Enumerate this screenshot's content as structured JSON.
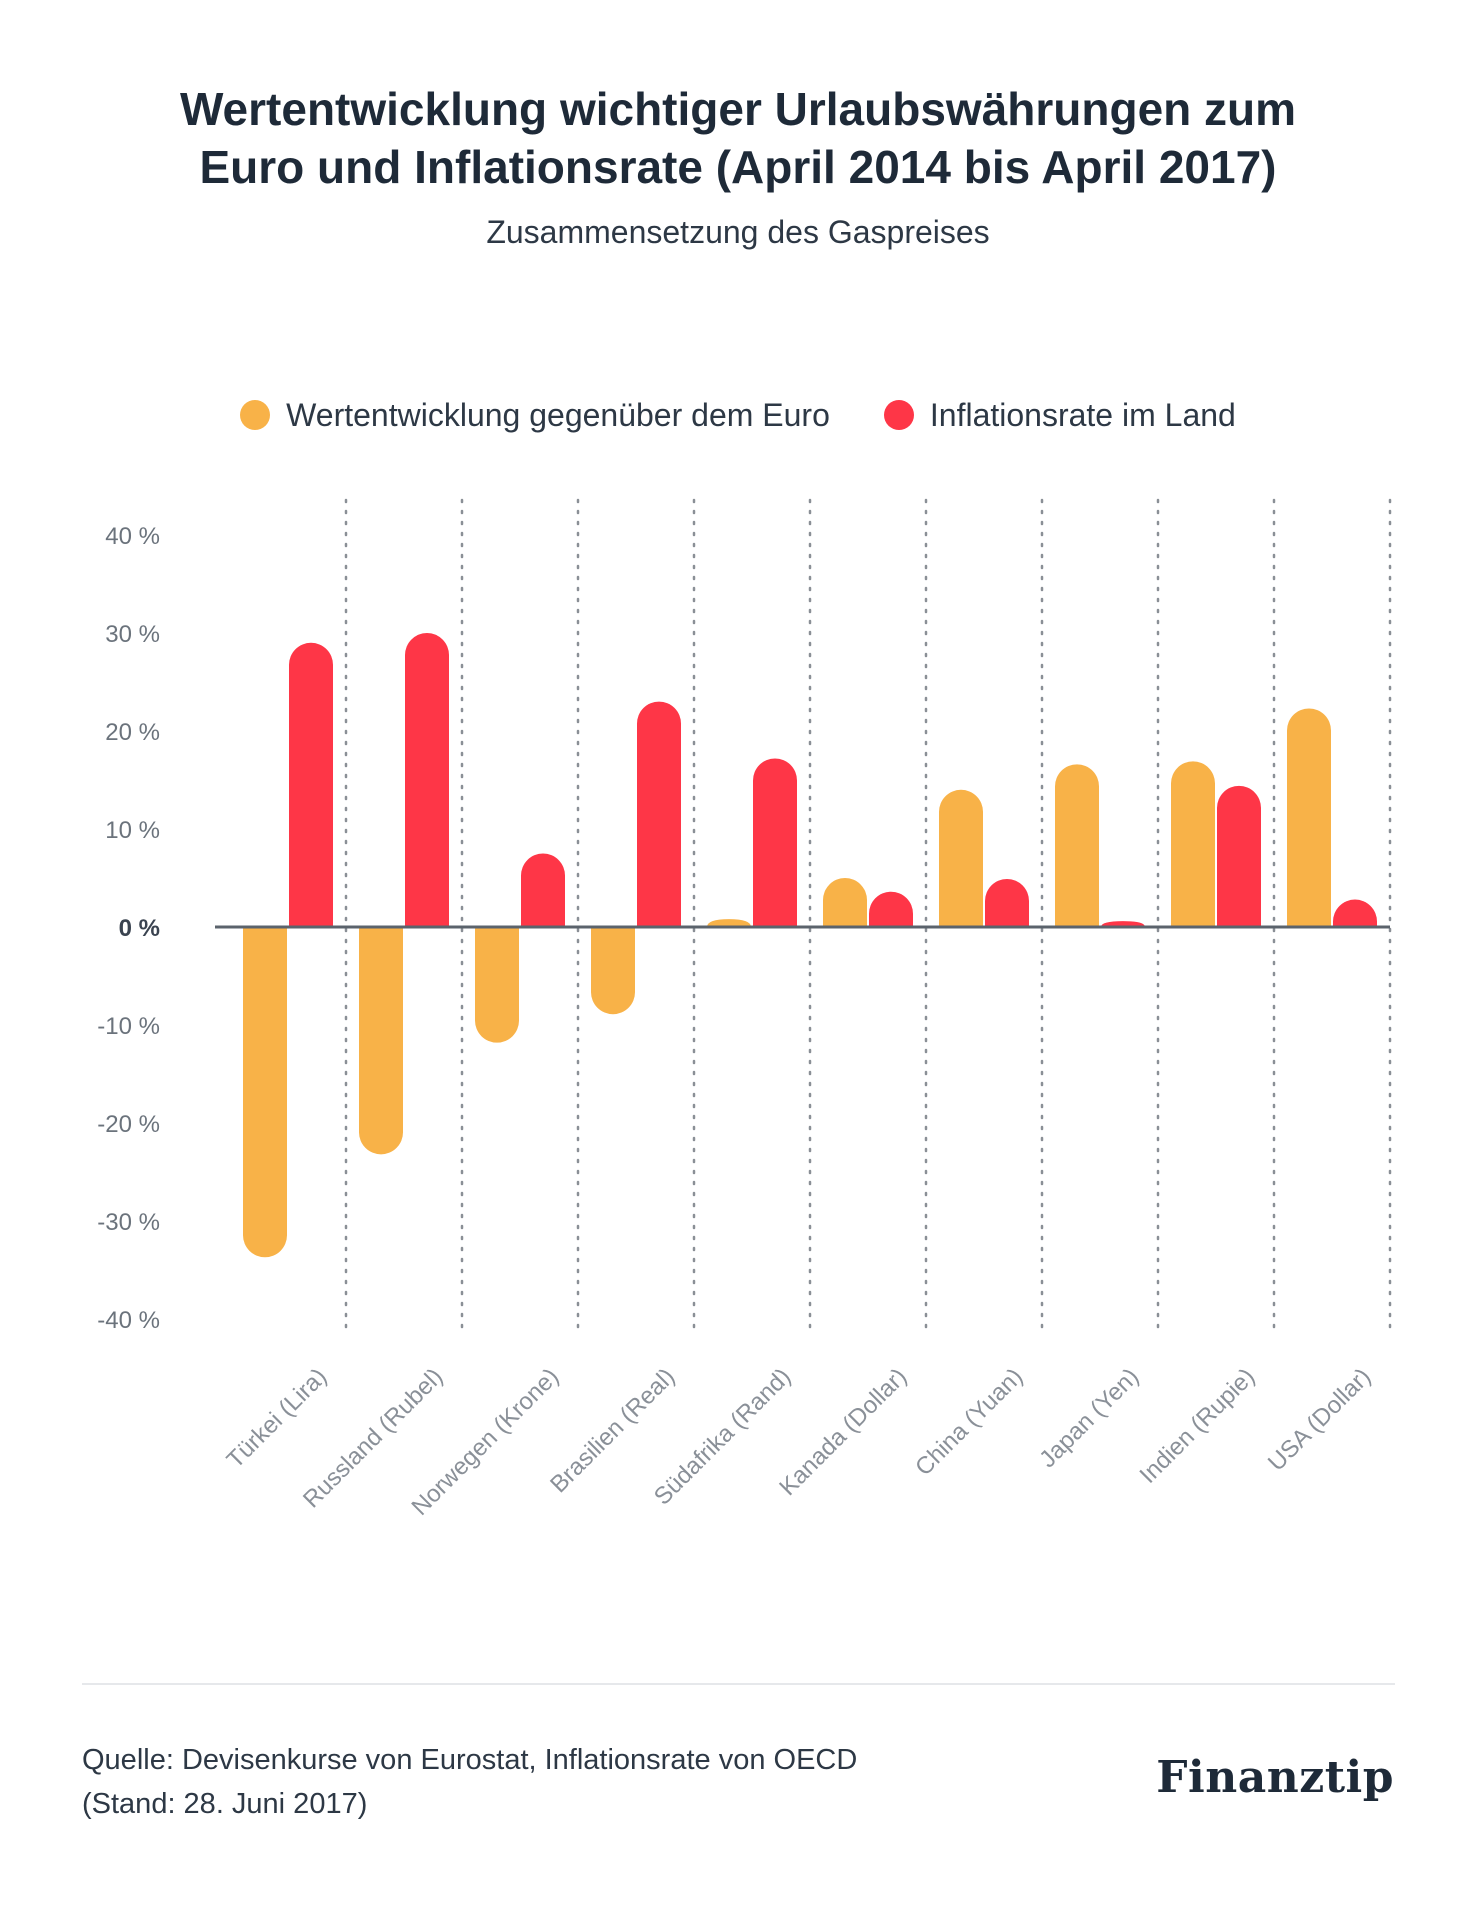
{
  "chart_data": {
    "type": "bar",
    "title": [
      "Wertentwicklung wichtiger Urlaubswährungen zum",
      "Euro und Inflationsrate (April 2014 bis April 2017)"
    ],
    "subtitle": "Zusammensetzung des Gaspreises",
    "categories": [
      "Türkei (Lira)",
      "Russland (Rubel)",
      "Norwegen (Krone)",
      "Brasilien (Real)",
      "Südafrika (Rand)",
      "Kanada (Dollar)",
      "China (Yuan)",
      "Japan (Yen)",
      "Indien (Rupie)",
      "USA (Dollar)"
    ],
    "series": [
      {
        "name": "Wertentwicklung gegenüber dem Euro",
        "color": "#f8b248",
        "values": [
          -33.7,
          -23.2,
          -11.8,
          -8.9,
          0.8,
          5.0,
          14.0,
          16.6,
          16.9,
          22.3
        ]
      },
      {
        "name": "Inflationsrate im Land",
        "color": "#fe3647",
        "values": [
          29.0,
          30.0,
          7.5,
          23.0,
          17.2,
          3.6,
          4.9,
          0.6,
          14.4,
          2.8
        ]
      }
    ],
    "yticks": [
      40,
      30,
      20,
      10,
      0,
      -10,
      -20,
      -30,
      -40
    ],
    "ytick_labels": [
      "40 %",
      "30 %",
      "20 %",
      "10 %",
      "0 %",
      "-10 %",
      "-20 %",
      "-30 %",
      "-40 %"
    ],
    "ylim": [
      -40,
      40
    ],
    "xlabel": "",
    "ylabel": "",
    "grid": false
  },
  "footer": {
    "source_line1": "Quelle: Devisenkurse von Eurostat, Inflationsrate von OECD",
    "source_line2": "(Stand: 28. Juni 2017)",
    "brand": "Finanztip"
  }
}
